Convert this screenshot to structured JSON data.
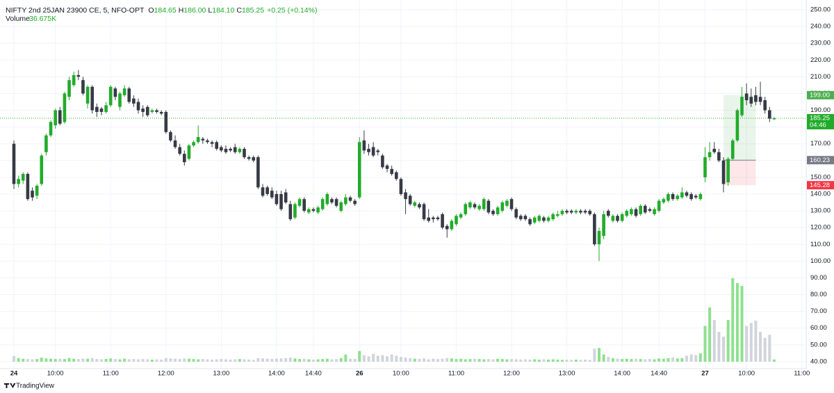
{
  "chart_data": {
    "type": "candlestick",
    "header": {
      "symbol": "NIFTY 2nd 25JAN 23900 CE, 5, NFO-OPT",
      "ohlc_labels": [
        "O",
        "H",
        "L",
        "C"
      ],
      "ohlc_values": [
        "184.65",
        "186.00",
        "184.10",
        "185.25"
      ],
      "change": "+0.25 (+0.14%)",
      "volume_label": "Volume",
      "volume_value": "36.675K"
    },
    "brand": "TradingView",
    "up_color": "#22ab2b",
    "down_color": "#363a45",
    "volume_up_color": "#8fe08f",
    "volume_down_color": "#d1d4dc",
    "grid": true,
    "ylim": [
      35.8,
      255.8
    ],
    "yticks": [
      {
        "value": 40,
        "label": "40.00"
      },
      {
        "value": 50,
        "label": "50.00"
      },
      {
        "value": 60,
        "label": "60.00"
      },
      {
        "value": 70,
        "label": "70.00"
      },
      {
        "value": 80,
        "label": "80.00"
      },
      {
        "value": 90,
        "label": "90.00"
      },
      {
        "value": 100,
        "label": "100.00"
      },
      {
        "value": 110,
        "label": "110.00"
      },
      {
        "value": 120,
        "label": "120.00"
      },
      {
        "value": 130,
        "label": "130.00"
      },
      {
        "value": 140,
        "label": "140.00"
      },
      {
        "value": 150,
        "label": "150.00"
      },
      {
        "value": 160,
        "label": "160.00"
      },
      {
        "value": 170,
        "label": "170.00"
      },
      {
        "value": 180,
        "label": "180.00"
      },
      {
        "value": 190,
        "label": "190.00"
      },
      {
        "value": 200,
        "label": "200.00"
      },
      {
        "value": 210,
        "label": "210.00"
      },
      {
        "value": 220,
        "label": "220.00"
      },
      {
        "value": 230,
        "label": "230.00"
      },
      {
        "value": 240,
        "label": "240.00"
      },
      {
        "value": 250,
        "label": "250.00"
      }
    ],
    "xticks": [
      {
        "value": 0,
        "label": "24",
        "day": true
      },
      {
        "value": 9,
        "label": "10:00"
      },
      {
        "value": 21,
        "label": "11:00"
      },
      {
        "value": 33,
        "label": "12:00"
      },
      {
        "value": 45,
        "label": "13:00"
      },
      {
        "value": 57,
        "label": "14:00"
      },
      {
        "value": 65,
        "label": "14:40"
      },
      {
        "value": 75,
        "label": "26",
        "day": true
      },
      {
        "value": 84,
        "label": "10:00"
      },
      {
        "value": 96,
        "label": "11:00"
      },
      {
        "value": 108,
        "label": "12:00"
      },
      {
        "value": 120,
        "label": "13:00"
      },
      {
        "value": 132,
        "label": "14:00"
      },
      {
        "value": 140,
        "label": "14:40"
      },
      {
        "value": 150,
        "label": "27",
        "day": true
      },
      {
        "value": 159,
        "label": "10:00"
      },
      {
        "value": 171,
        "label": "11:00"
      }
    ],
    "vlim": [
      0,
      2100000
    ],
    "ohlc": [
      [
        170,
        172,
        143,
        146
      ],
      [
        146,
        151,
        144,
        149
      ],
      [
        148,
        153,
        146,
        152
      ],
      [
        152,
        153,
        136,
        137
      ],
      [
        142,
        144,
        136,
        138
      ],
      [
        139,
        146,
        137,
        145
      ],
      [
        146,
        164,
        145,
        163
      ],
      [
        165,
        176,
        163,
        175
      ],
      [
        175,
        184,
        174,
        183
      ],
      [
        181,
        191,
        179,
        190
      ],
      [
        190,
        192,
        181,
        182
      ],
      [
        183,
        201,
        182,
        200
      ],
      [
        198,
        210,
        196,
        208
      ],
      [
        205,
        213,
        204,
        211
      ],
      [
        211,
        214,
        208,
        210
      ],
      [
        208,
        210,
        199,
        200
      ],
      [
        194,
        205,
        191,
        204
      ],
      [
        204,
        205,
        188,
        190
      ],
      [
        192,
        194,
        186,
        189
      ],
      [
        191,
        192,
        187,
        189
      ],
      [
        189,
        195,
        188,
        193
      ],
      [
        193,
        205,
        192,
        204
      ],
      [
        203,
        204,
        196,
        198
      ],
      [
        192,
        201,
        190,
        200
      ],
      [
        199,
        205,
        198,
        203
      ],
      [
        203,
        204,
        194,
        195
      ],
      [
        197,
        199,
        192,
        194
      ],
      [
        195,
        197,
        188,
        190
      ],
      [
        191,
        193,
        186,
        189
      ],
      [
        192,
        193,
        186,
        187
      ],
      [
        189,
        191,
        188,
        190
      ],
      [
        190,
        191,
        188,
        189
      ],
      [
        189,
        190,
        187,
        188
      ],
      [
        189,
        190,
        176,
        177
      ],
      [
        177,
        178,
        171,
        172
      ],
      [
        172,
        175,
        167,
        168
      ],
      [
        168,
        170,
        163,
        164
      ],
      [
        164,
        166,
        157,
        159
      ],
      [
        161,
        170,
        160,
        169
      ],
      [
        169,
        172,
        168,
        171
      ],
      [
        171,
        181,
        170,
        174
      ],
      [
        173,
        174,
        170,
        172
      ],
      [
        172,
        173,
        170,
        171
      ],
      [
        171,
        172,
        168,
        170
      ],
      [
        171,
        172,
        166,
        167
      ],
      [
        168,
        169,
        165,
        166
      ],
      [
        167,
        169,
        164,
        165
      ],
      [
        167,
        168,
        165,
        166
      ],
      [
        168,
        170,
        164,
        165
      ],
      [
        165,
        168,
        164,
        167
      ],
      [
        167,
        168,
        161,
        162
      ],
      [
        162,
        163,
        160,
        161
      ],
      [
        162,
        163,
        159,
        160
      ],
      [
        162,
        163,
        143,
        144
      ],
      [
        144,
        146,
        138,
        139
      ],
      [
        144,
        145,
        139,
        140
      ],
      [
        142,
        144,
        137,
        138
      ],
      [
        140,
        142,
        133,
        134
      ],
      [
        140,
        142,
        130,
        131
      ],
      [
        141,
        143,
        134,
        135
      ],
      [
        134,
        136,
        124,
        125
      ],
      [
        126,
        135,
        125,
        134
      ],
      [
        133,
        138,
        132,
        137
      ],
      [
        137,
        138,
        129,
        130
      ],
      [
        129,
        132,
        128,
        131
      ],
      [
        131,
        132,
        129,
        130
      ],
      [
        129,
        133,
        128,
        132
      ],
      [
        131,
        138,
        130,
        137
      ],
      [
        134,
        141,
        133,
        140
      ],
      [
        137,
        138,
        134,
        135
      ],
      [
        137,
        138,
        132,
        133
      ],
      [
        130,
        136,
        129,
        135
      ],
      [
        134,
        140,
        133,
        138
      ],
      [
        138,
        139,
        135,
        136
      ],
      [
        136,
        137,
        133,
        134
      ],
      [
        138,
        174,
        137,
        171
      ],
      [
        172,
        178,
        164,
        166
      ],
      [
        167,
        170,
        163,
        165
      ],
      [
        168,
        171,
        162,
        163
      ],
      [
        166,
        167,
        163,
        165
      ],
      [
        163,
        164,
        155,
        156
      ],
      [
        157,
        158,
        153,
        155
      ],
      [
        155,
        157,
        151,
        152
      ],
      [
        153,
        154,
        148,
        149
      ],
      [
        149,
        150,
        139,
        140
      ],
      [
        141,
        143,
        128,
        137
      ],
      [
        139,
        140,
        133,
        134
      ],
      [
        133,
        136,
        132,
        135
      ],
      [
        134,
        135,
        131,
        132
      ],
      [
        134,
        135,
        124,
        125
      ],
      [
        126,
        131,
        123,
        124
      ],
      [
        126,
        127,
        123,
        125
      ],
      [
        126,
        127,
        124,
        125
      ],
      [
        128,
        129,
        119,
        120
      ],
      [
        121,
        122,
        114,
        119
      ],
      [
        119,
        125,
        118,
        124
      ],
      [
        122,
        128,
        121,
        127
      ],
      [
        126,
        129,
        125,
        128
      ],
      [
        128,
        135,
        127,
        134
      ],
      [
        132,
        136,
        131,
        135
      ],
      [
        134,
        135,
        131,
        132
      ],
      [
        131,
        134,
        130,
        133
      ],
      [
        131,
        138,
        130,
        137
      ],
      [
        136,
        137,
        128,
        129
      ],
      [
        130,
        131,
        127,
        128
      ],
      [
        128,
        133,
        127,
        132
      ],
      [
        130,
        136,
        129,
        135
      ],
      [
        133,
        137,
        132,
        136
      ],
      [
        137,
        138,
        130,
        131
      ],
      [
        131,
        132,
        125,
        126
      ],
      [
        127,
        128,
        124,
        125
      ],
      [
        127,
        128,
        124,
        125
      ],
      [
        125,
        126,
        121,
        122
      ],
      [
        123,
        127,
        122,
        126
      ],
      [
        124,
        128,
        123,
        127
      ],
      [
        126,
        127,
        123,
        124
      ],
      [
        124,
        127,
        123,
        126
      ],
      [
        125,
        129,
        124,
        128
      ],
      [
        127,
        130,
        126,
        128
      ],
      [
        128,
        131,
        127,
        130
      ],
      [
        130,
        131,
        128,
        129
      ],
      [
        130,
        131,
        128,
        129
      ],
      [
        129,
        131,
        128,
        130
      ],
      [
        130,
        131,
        128,
        129
      ],
      [
        130,
        131,
        128,
        129
      ],
      [
        130,
        131,
        127,
        128
      ],
      [
        128,
        129,
        109,
        110
      ],
      [
        110,
        120,
        100,
        118
      ],
      [
        115,
        130,
        113,
        128
      ],
      [
        130,
        131,
        126,
        127
      ],
      [
        124,
        128,
        123,
        127
      ],
      [
        127,
        128,
        123,
        124
      ],
      [
        124,
        129,
        123,
        128
      ],
      [
        127,
        131,
        126,
        130
      ],
      [
        128,
        132,
        127,
        131
      ],
      [
        131,
        132,
        126,
        127
      ],
      [
        128,
        134,
        127,
        133
      ],
      [
        133,
        134,
        128,
        129
      ],
      [
        131,
        132,
        129,
        130
      ],
      [
        128,
        132,
        127,
        131
      ],
      [
        130,
        137,
        129,
        136
      ],
      [
        135,
        138,
        134,
        137
      ],
      [
        136,
        141,
        135,
        140
      ],
      [
        140,
        141,
        136,
        137
      ],
      [
        137,
        140,
        136,
        139
      ],
      [
        138,
        144,
        137,
        141
      ],
      [
        141,
        142,
        138,
        139
      ],
      [
        140,
        141,
        136,
        137
      ],
      [
        139,
        140,
        137,
        138
      ],
      [
        137,
        141,
        136,
        140
      ],
      [
        150,
        168,
        147,
        162
      ],
      [
        162,
        171,
        160,
        165
      ],
      [
        167,
        171,
        164,
        165
      ],
      [
        165,
        167,
        159,
        160
      ],
      [
        160,
        162,
        141,
        146
      ],
      [
        147,
        162,
        145,
        161
      ],
      [
        161,
        173,
        160,
        172
      ],
      [
        172,
        191,
        171,
        190
      ],
      [
        187,
        204,
        186,
        198
      ],
      [
        200,
        206,
        193,
        196
      ],
      [
        198,
        203,
        192,
        194
      ],
      [
        199,
        204,
        193,
        195
      ],
      [
        198,
        207,
        193,
        195
      ],
      [
        196,
        198,
        188,
        190
      ],
      [
        190,
        192,
        183,
        185
      ],
      [
        184.65,
        186,
        184.1,
        185.25
      ]
    ],
    "volume": [
      95000,
      60000,
      50000,
      45000,
      40000,
      45000,
      70000,
      55000,
      50000,
      45000,
      50000,
      45000,
      60000,
      50000,
      45000,
      55000,
      50000,
      60000,
      45000,
      40000,
      45000,
      55000,
      45000,
      40000,
      50000,
      40000,
      45000,
      40000,
      45000,
      40000,
      35000,
      40000,
      35000,
      60000,
      55000,
      50000,
      45000,
      55000,
      50000,
      45000,
      40000,
      45000,
      40000,
      35000,
      40000,
      45000,
      40000,
      35000,
      40000,
      45000,
      40000,
      35000,
      30000,
      60000,
      55000,
      50000,
      45000,
      50000,
      55000,
      60000,
      70000,
      55000,
      45000,
      50000,
      40000,
      35000,
      40000,
      45000,
      50000,
      40000,
      45000,
      60000,
      120000,
      50000,
      45000,
      180000,
      110000,
      90000,
      130000,
      100000,
      110000,
      90000,
      120000,
      100000,
      80000,
      70000,
      60000,
      50000,
      45000,
      55000,
      40000,
      50000,
      45000,
      50000,
      60000,
      55000,
      45000,
      50000,
      40000,
      45000,
      50000,
      45000,
      40000,
      45000,
      40000,
      50000,
      45000,
      40000,
      45000,
      40000,
      35000,
      40000,
      35000,
      40000,
      35000,
      40000,
      35000,
      40000,
      35000,
      30000,
      35000,
      30000,
      35000,
      30000,
      35000,
      30000,
      220000,
      230000,
      120000,
      80000,
      60000,
      50000,
      45000,
      50000,
      45000,
      50000,
      45000,
      40000,
      45000,
      40000,
      55000,
      50000,
      60000,
      70000,
      55000,
      60000,
      100000,
      120000,
      110000,
      140000,
      600000,
      910000,
      700000,
      500000,
      420000,
      700000,
      1400000,
      1320000,
      1270000,
      600000,
      650000,
      690000,
      500000,
      400000,
      450000,
      36675
    ],
    "position": {
      "start": 154,
      "end": 161,
      "target": {
        "value": 199,
        "label": "199.00",
        "color": "#4caf50"
      },
      "entry": {
        "value": 160.23,
        "label": "160.23",
        "color": "#787b86"
      },
      "stop": {
        "value": 145.28,
        "label": "145.28",
        "color": "#f23645"
      }
    },
    "last_price": {
      "value": 185.25,
      "label": "185.25",
      "countdown": "04:46",
      "color": "#22ab2b"
    }
  }
}
